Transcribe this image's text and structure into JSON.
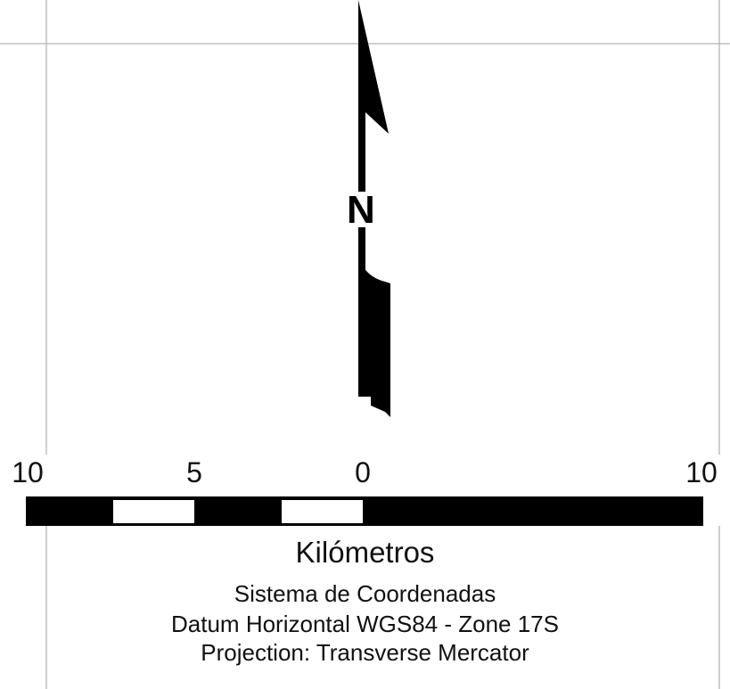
{
  "north_arrow": {
    "label": "N"
  },
  "scale_bar": {
    "tick_labels": [
      "10",
      "5",
      "0",
      "10"
    ],
    "units": "Kilómetros"
  },
  "coordinate_info": {
    "line1": "Sistema de Coordenadas",
    "line2": "Datum Horizontal WGS84 - Zone 17S",
    "line3": "Projection: Transverse Mercator"
  },
  "colors": {
    "ink": "#000000",
    "grid": "#b5b5b5",
    "paper": "#ffffff"
  }
}
